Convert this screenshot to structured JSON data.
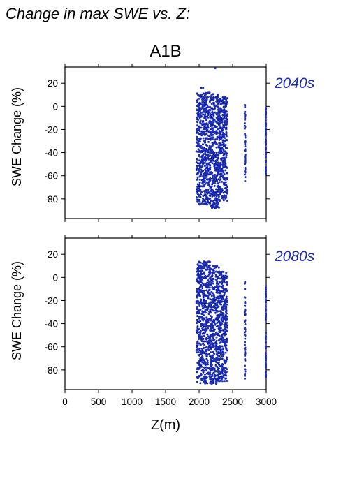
{
  "page_title": "Change in max SWE vs. Z:",
  "chart_data": [
    {
      "type": "scatter",
      "title": "A1B",
      "annotation": "2040s",
      "xlabel": "Z(m)",
      "ylabel": "SWE Change (%)",
      "xlim": [
        0,
        3000
      ],
      "ylim": [
        -97,
        34
      ],
      "xticks": [
        0,
        500,
        1000,
        1500,
        2000,
        2500,
        3000
      ],
      "yticks": [
        20,
        0,
        -20,
        -40,
        -60,
        -80
      ],
      "point_color": "#1a2bb0",
      "elevation_bands": [
        {
          "xmin": 1960,
          "xmax": 2180,
          "ymin": -85,
          "ymax": 12
        },
        {
          "xmin": 2180,
          "xmax": 2300,
          "ymin": -88,
          "ymax": 11
        },
        {
          "xmin": 2300,
          "xmax": 2420,
          "ymin": -82,
          "ymax": 8
        },
        {
          "xmin": 2680,
          "xmax": 2690,
          "ymin": -65,
          "ymax": 3
        },
        {
          "xmin": 2995,
          "xmax": 3000,
          "ymin": -65,
          "ymax": 0
        }
      ],
      "outliers": [
        {
          "x": 2030,
          "y": 16
        },
        {
          "x": 2060,
          "y": 16
        },
        {
          "x": 2240,
          "y": 33
        }
      ]
    },
    {
      "type": "scatter",
      "title": "",
      "annotation": "2080s",
      "xlabel": "Z(m)",
      "ylabel": "SWE Change (%)",
      "xlim": [
        0,
        3000
      ],
      "ylim": [
        -97,
        34
      ],
      "xticks": [
        0,
        500,
        1000,
        1500,
        2000,
        2500,
        3000
      ],
      "yticks": [
        20,
        0,
        -20,
        -40,
        -60,
        -80
      ],
      "point_color": "#1a2bb0",
      "elevation_bands": [
        {
          "xmin": 1960,
          "xmax": 2180,
          "ymin": -92,
          "ymax": 14
        },
        {
          "xmin": 2180,
          "xmax": 2300,
          "ymin": -92,
          "ymax": 10
        },
        {
          "xmin": 2300,
          "xmax": 2420,
          "ymin": -90,
          "ymax": 5
        },
        {
          "xmin": 2680,
          "xmax": 2690,
          "ymin": -88,
          "ymax": -4
        },
        {
          "xmin": 2995,
          "xmax": 3000,
          "ymin": -88,
          "ymax": -8
        }
      ],
      "outliers": []
    }
  ]
}
